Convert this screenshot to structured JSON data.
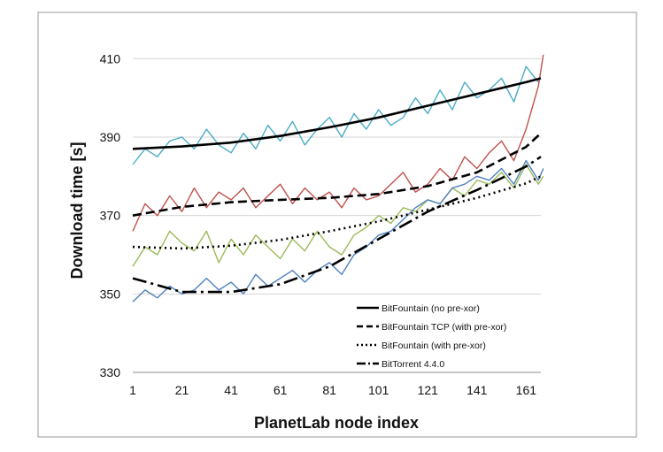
{
  "chart_data": {
    "type": "line",
    "title": "",
    "xlabel": "PlanetLab node index",
    "ylabel": "Download  time [s]",
    "xlim": [
      1,
      167
    ],
    "ylim": [
      330,
      420
    ],
    "x_ticks": [
      "1",
      "21",
      "41",
      "61",
      "81",
      "101",
      "121",
      "141",
      "161"
    ],
    "y_ticks": [
      "330",
      "350",
      "370",
      "390",
      "410"
    ],
    "grid": "horizontal",
    "legend_position": "bottom-right",
    "trend_lines": [
      {
        "name": "BitFountain (no pre-xor)",
        "style": "solid",
        "color": "#000000",
        "x": [
          1,
          21,
          41,
          61,
          81,
          101,
          121,
          141,
          161,
          167
        ],
        "y": [
          387,
          387.6,
          388.6,
          390.3,
          392.5,
          395,
          398,
          401,
          404,
          405
        ]
      },
      {
        "name": "BitFountain TCP (with pre-xor)",
        "style": "dash",
        "color": "#000000",
        "x": [
          1,
          21,
          41,
          61,
          81,
          101,
          121,
          141,
          161,
          167
        ],
        "y": [
          370,
          372.2,
          373.4,
          374,
          374.5,
          375.5,
          377.5,
          381,
          387.5,
          391
        ]
      },
      {
        "name": "BitFountain (with pre-xor)",
        "style": "dot",
        "color": "#000000",
        "x": [
          1,
          21,
          41,
          61,
          81,
          101,
          121,
          141,
          161,
          167
        ],
        "y": [
          362,
          361.6,
          362.3,
          363.8,
          366,
          368.5,
          371.5,
          374.5,
          378.2,
          380
        ]
      },
      {
        "name": "BitTorrent 4.4.0",
        "style": "dashdot",
        "color": "#000000",
        "x": [
          1,
          21,
          41,
          61,
          81,
          101,
          121,
          141,
          161,
          167
        ],
        "y": [
          354,
          350.5,
          350.5,
          352.5,
          357,
          364,
          371,
          376.5,
          382.5,
          385
        ]
      }
    ],
    "series": [
      {
        "color": "#4bacc6",
        "x": [
          1,
          6,
          11,
          16,
          21,
          26,
          31,
          36,
          41,
          46,
          51,
          56,
          61,
          66,
          71,
          76,
          81,
          86,
          91,
          96,
          101,
          106,
          111,
          116,
          121,
          126,
          131,
          136,
          141,
          146,
          151,
          156,
          161,
          166
        ],
        "y": [
          383,
          387,
          385,
          389,
          390,
          387,
          392,
          388,
          386,
          391,
          387,
          393,
          389,
          394,
          388,
          392,
          395,
          390,
          396,
          392,
          397,
          393,
          395,
          400,
          396,
          402,
          397,
          404,
          400,
          402,
          405,
          399,
          408,
          404
        ]
      },
      {
        "color": "#c0504d",
        "x": [
          1,
          6,
          11,
          16,
          21,
          26,
          31,
          36,
          41,
          46,
          51,
          56,
          61,
          66,
          71,
          76,
          81,
          86,
          91,
          96,
          101,
          106,
          111,
          116,
          121,
          126,
          131,
          136,
          141,
          146,
          151,
          156,
          161,
          166,
          168
        ],
        "y": [
          366,
          373,
          370,
          375,
          371,
          377,
          372,
          376,
          374,
          377,
          372,
          375,
          378,
          373,
          377,
          374,
          376,
          372,
          377,
          374,
          375,
          378,
          381,
          376,
          378,
          382,
          379,
          385,
          382,
          386,
          389,
          384,
          392,
          403,
          411
        ]
      },
      {
        "color": "#9bbb59",
        "x": [
          1,
          6,
          11,
          16,
          21,
          26,
          31,
          36,
          41,
          46,
          51,
          56,
          61,
          66,
          71,
          76,
          81,
          86,
          91,
          96,
          101,
          106,
          111,
          116,
          121,
          126,
          131,
          136,
          141,
          146,
          151,
          156,
          161,
          166,
          168
        ],
        "y": [
          357,
          362,
          360,
          366,
          363,
          361,
          366,
          358,
          364,
          360,
          365,
          362,
          359,
          364,
          361,
          366,
          362,
          360,
          365,
          367,
          370,
          368,
          372,
          371,
          374,
          373,
          377,
          375,
          379,
          378,
          381,
          377,
          383,
          378,
          380
        ]
      },
      {
        "color": "#4f81bd",
        "x": [
          1,
          6,
          11,
          16,
          21,
          26,
          31,
          36,
          41,
          46,
          51,
          56,
          61,
          66,
          71,
          76,
          81,
          86,
          91,
          96,
          101,
          106,
          111,
          116,
          121,
          126,
          131,
          136,
          141,
          146,
          151,
          156,
          161,
          166,
          168
        ],
        "y": [
          348,
          351,
          349,
          352,
          350,
          351,
          354,
          351,
          353,
          350,
          355,
          352,
          354,
          356,
          353,
          356,
          358,
          355,
          360,
          362,
          365,
          366,
          369,
          372,
          374,
          373,
          377,
          378,
          380,
          379,
          382,
          378,
          384,
          379,
          382
        ]
      }
    ]
  }
}
